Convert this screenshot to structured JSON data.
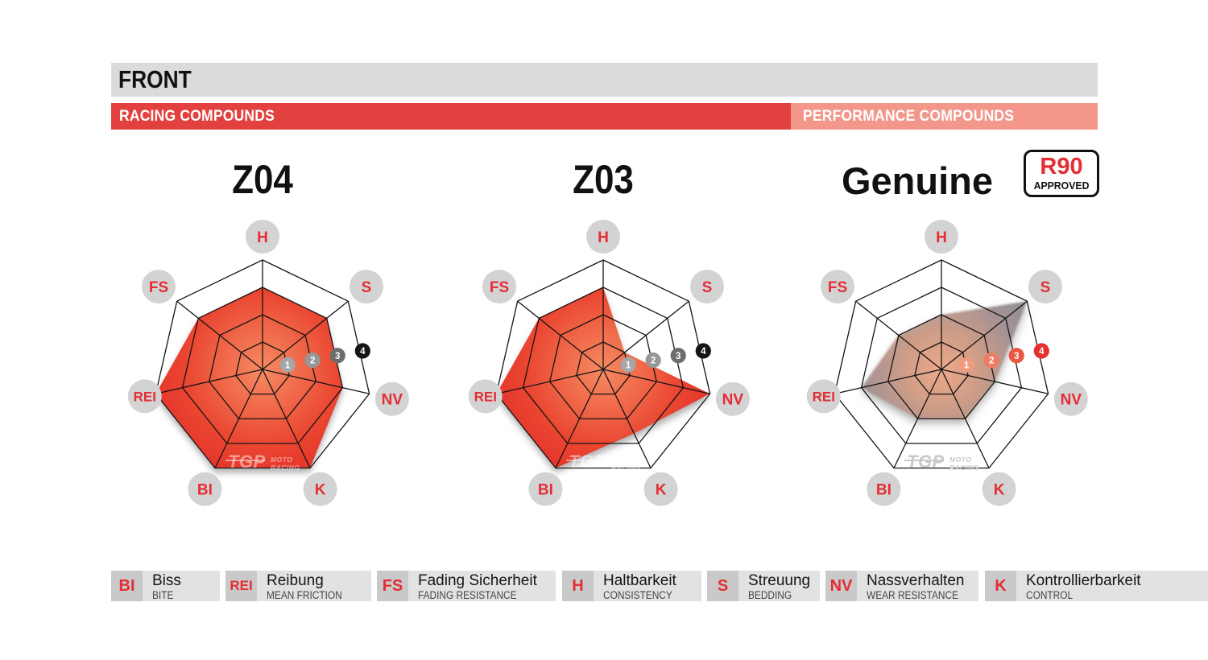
{
  "header": {
    "front_label": "FRONT",
    "racing_label": "RACING COMPOUNDS",
    "performance_label": "PERFORMANCE COMPOUNDS"
  },
  "badge": {
    "line1": "R90",
    "line2": "APPROVED"
  },
  "watermark": {
    "logo": "TGP",
    "line1": "MOTO",
    "line2": "RACING"
  },
  "scale_labels": [
    "1",
    "2",
    "3",
    "4"
  ],
  "chart_data": [
    {
      "type": "radar",
      "title": "Z04",
      "group": "racing",
      "axes": [
        "H",
        "S",
        "NV",
        "K",
        "BI",
        "REI",
        "FS"
      ],
      "values": [
        3,
        3,
        3,
        4,
        4,
        4,
        3
      ],
      "scale": {
        "min": 0,
        "max": 4,
        "ticks": [
          1,
          2,
          3,
          4
        ]
      }
    },
    {
      "type": "radar",
      "title": "Z03",
      "group": "racing",
      "axes": [
        "H",
        "S",
        "NV",
        "K",
        "BI",
        "REI",
        "FS"
      ],
      "values": [
        3,
        1,
        4,
        2.6,
        4,
        4,
        3
      ],
      "scale": {
        "min": 0,
        "max": 4,
        "ticks": [
          1,
          2,
          3,
          4
        ]
      }
    },
    {
      "type": "radar",
      "title": "Genuine",
      "group": "performance",
      "axes": [
        "H",
        "S",
        "NV",
        "K",
        "BI",
        "REI",
        "FS"
      ],
      "values": [
        2,
        4,
        2,
        2,
        2,
        3,
        2
      ],
      "scale": {
        "min": 0,
        "max": 4,
        "ticks": [
          1,
          2,
          3,
          4
        ]
      }
    }
  ],
  "legend": [
    {
      "abbr": "BI",
      "term_de": "Biss",
      "term_en": "BITE"
    },
    {
      "abbr": "REI",
      "term_de": "Reibung",
      "term_en": "MEAN FRICTION"
    },
    {
      "abbr": "FS",
      "term_de": "Fading Sicherheit",
      "term_en": "FADING RESISTANCE"
    },
    {
      "abbr": "H",
      "term_de": "Haltbarkeit",
      "term_en": "CONSISTENCY"
    },
    {
      "abbr": "S",
      "term_de": "Streuung",
      "term_en": "BEDDING"
    },
    {
      "abbr": "NV",
      "term_de": "Nassverhalten",
      "term_en": "WEAR RESISTANCE"
    },
    {
      "abbr": "K",
      "term_de": "Kontrollierbarkeit",
      "term_en": "CONTROL"
    }
  ],
  "colors": {
    "front_bar_bg": "#dbdbdb",
    "racing_bar_bg": "#e2413f",
    "performance_bar_bg": "#f2978a",
    "accent_red": "#e42d35",
    "label_circle_bg": "#d3d3d3",
    "grid_line": "#141414",
    "racing_marker_colors": [
      "#a6a6a6",
      "#979797",
      "#6d6d6d",
      "#151515"
    ],
    "performance_marker_colors": [
      "#f29a7f",
      "#ef7d64",
      "#ec5742",
      "#e6302e"
    ],
    "racing_fill_stops": [
      "#f58a63",
      "#f06a4b",
      "#ea4631",
      "#e5352b"
    ],
    "performance_fill_stops": [
      "#f0a888",
      "#cf9c85",
      "#a39093",
      "#8c8c90"
    ]
  }
}
